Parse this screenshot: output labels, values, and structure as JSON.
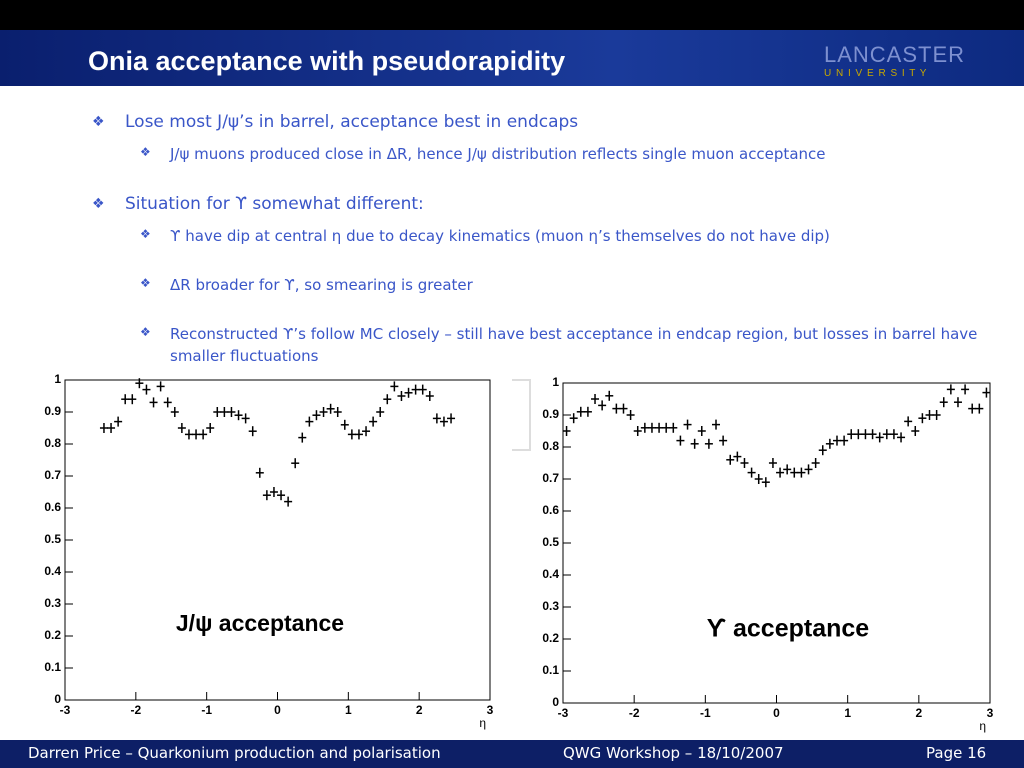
{
  "header": {
    "title": "Onia acceptance with pseudorapidity",
    "logo_line1": "LANCASTER",
    "logo_line2": "U N I V E R S I T Y"
  },
  "bullets": [
    {
      "level": 1,
      "text": "Lose most J/ψ’s in barrel, acceptance best in endcaps"
    },
    {
      "level": 2,
      "text": "J/ψ muons produced close in ΔR, hence J/ψ distribution reflects single muon acceptance"
    },
    {
      "level": 1,
      "text": "Situation for ϒ somewhat different:"
    },
    {
      "level": 2,
      "text": "ϒ have dip at central η due to decay kinematics (muon η’s themselves do not have dip)"
    },
    {
      "level": 2,
      "text": "ΔR broader for ϒ, so smearing is greater"
    },
    {
      "level": 2,
      "text": "Reconstructed ϒ’s follow MC closely – still have best acceptance in endcap region, but losses in barrel have smaller fluctuations"
    }
  ],
  "chart_data": [
    {
      "type": "scatter",
      "annotation": "J/ψ acceptance",
      "xlabel": "η",
      "color": "#000000",
      "x": [
        -2.45,
        -2.35,
        -2.25,
        -2.15,
        -2.05,
        -1.95,
        -1.85,
        -1.75,
        -1.65,
        -1.55,
        -1.45,
        -1.35,
        -1.25,
        -1.15,
        -1.05,
        -0.95,
        -0.85,
        -0.75,
        -0.65,
        -0.55,
        -0.45,
        -0.35,
        -0.25,
        -0.15,
        -0.05,
        0.05,
        0.15,
        0.25,
        0.35,
        0.45,
        0.55,
        0.65,
        0.75,
        0.85,
        0.95,
        1.05,
        1.15,
        1.25,
        1.35,
        1.45,
        1.55,
        1.65,
        1.75,
        1.85,
        1.95,
        2.05,
        2.15,
        2.25,
        2.35,
        2.45
      ],
      "values": [
        0.85,
        0.85,
        0.87,
        0.94,
        0.94,
        0.99,
        0.97,
        0.93,
        0.98,
        0.93,
        0.9,
        0.85,
        0.83,
        0.83,
        0.83,
        0.85,
        0.9,
        0.9,
        0.9,
        0.89,
        0.88,
        0.84,
        0.71,
        0.64,
        0.65,
        0.64,
        0.62,
        0.74,
        0.82,
        0.87,
        0.89,
        0.9,
        0.91,
        0.9,
        0.86,
        0.83,
        0.83,
        0.84,
        0.87,
        0.9,
        0.94,
        0.98,
        0.95,
        0.96,
        0.97,
        0.97,
        0.95,
        0.88,
        0.87,
        0.88
      ],
      "xlim": [
        -3,
        3
      ],
      "ylim": [
        0,
        1
      ],
      "xticks": [
        -3,
        -2,
        -1,
        0,
        1,
        2,
        3
      ],
      "yticks": [
        0,
        0.1,
        0.2,
        0.3,
        0.4,
        0.5,
        0.6,
        0.7,
        0.8,
        0.9,
        1
      ]
    },
    {
      "type": "scatter",
      "annotation": "ϒ acceptance",
      "xlabel": "η",
      "color": "#000000",
      "x": [
        -2.95,
        -2.85,
        -2.75,
        -2.65,
        -2.55,
        -2.45,
        -2.35,
        -2.25,
        -2.15,
        -2.05,
        -1.95,
        -1.85,
        -1.75,
        -1.65,
        -1.55,
        -1.45,
        -1.35,
        -1.25,
        -1.15,
        -1.05,
        -0.95,
        -0.85,
        -0.75,
        -0.65,
        -0.55,
        -0.45,
        -0.35,
        -0.25,
        -0.15,
        -0.05,
        0.05,
        0.15,
        0.25,
        0.35,
        0.45,
        0.55,
        0.65,
        0.75,
        0.85,
        0.95,
        1.05,
        1.15,
        1.25,
        1.35,
        1.45,
        1.55,
        1.65,
        1.75,
        1.85,
        1.95,
        2.05,
        2.15,
        2.25,
        2.35,
        2.45,
        2.55,
        2.65,
        2.75,
        2.85,
        2.95
      ],
      "values": [
        0.85,
        0.89,
        0.91,
        0.91,
        0.95,
        0.93,
        0.96,
        0.92,
        0.92,
        0.9,
        0.85,
        0.86,
        0.86,
        0.86,
        0.86,
        0.86,
        0.82,
        0.87,
        0.81,
        0.85,
        0.81,
        0.87,
        0.82,
        0.76,
        0.77,
        0.75,
        0.72,
        0.7,
        0.69,
        0.75,
        0.72,
        0.73,
        0.72,
        0.72,
        0.73,
        0.75,
        0.79,
        0.81,
        0.82,
        0.82,
        0.84,
        0.84,
        0.84,
        0.84,
        0.83,
        0.84,
        0.84,
        0.83,
        0.88,
        0.85,
        0.89,
        0.9,
        0.9,
        0.94,
        0.98,
        0.94,
        0.98,
        0.92,
        0.92,
        0.97
      ],
      "xlim": [
        -3,
        3
      ],
      "ylim": [
        0,
        1
      ],
      "xticks": [
        -3,
        -2,
        -1,
        0,
        1,
        2,
        3
      ],
      "yticks": [
        0,
        0.1,
        0.2,
        0.3,
        0.4,
        0.5,
        0.6,
        0.7,
        0.8,
        0.9,
        1
      ]
    }
  ],
  "footer": {
    "left": "Darren Price – Quarkonium production and polarisation",
    "center": "QWG Workshop – 18/10/2007",
    "right": "Page 16"
  }
}
